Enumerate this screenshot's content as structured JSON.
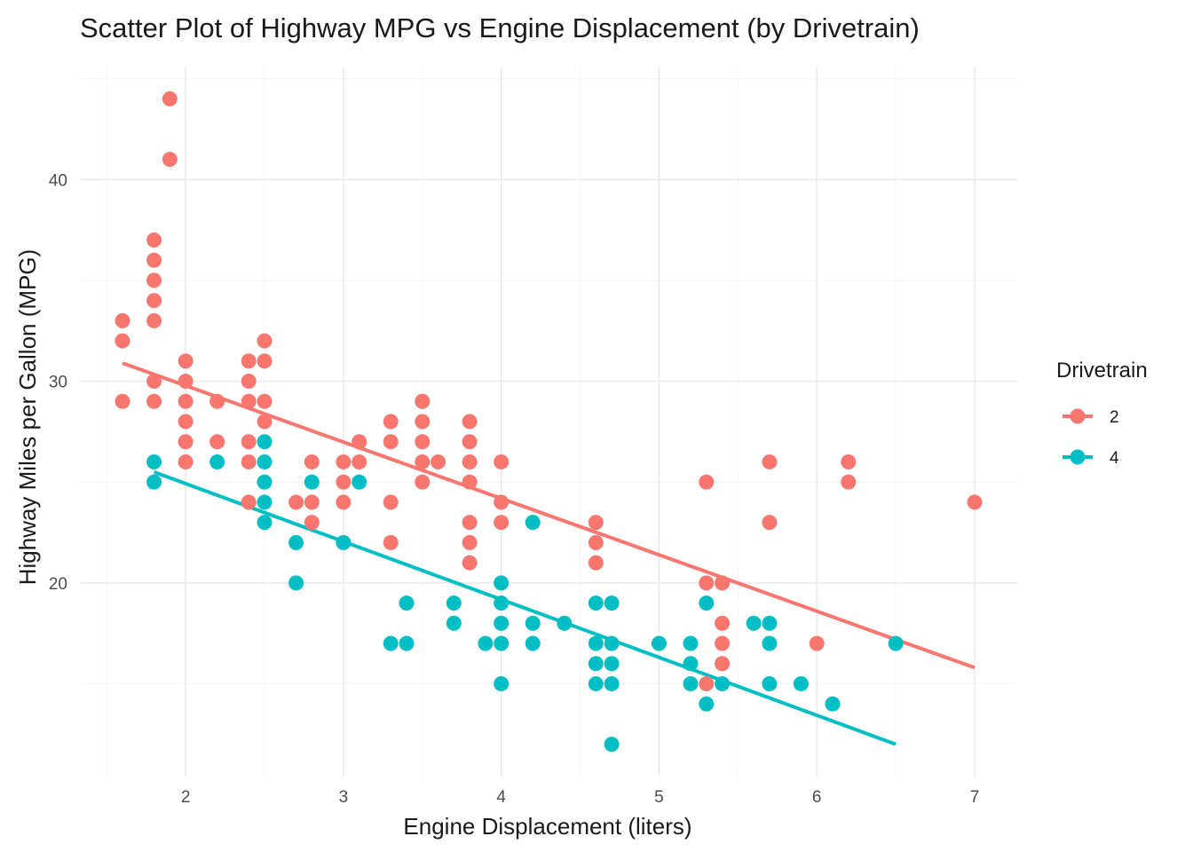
{
  "chart_data": {
    "type": "scatter",
    "title": "Scatter Plot of Highway MPG vs Engine Displacement (by Drivetrain)",
    "xlabel": "Engine Displacement (liters)",
    "ylabel": "Highway Miles per Gallon (MPG)",
    "xlim": [
      1.33,
      7.27
    ],
    "ylim": [
      10.4,
      45.6
    ],
    "x_ticks": [
      2,
      3,
      4,
      5,
      6,
      7
    ],
    "x_tick_labels": [
      "2",
      "3",
      "4",
      "5",
      "6",
      "7"
    ],
    "y_ticks": [
      20,
      30,
      40
    ],
    "y_tick_labels": [
      "20",
      "30",
      "40"
    ],
    "grid": true,
    "legend": {
      "title": "Drivetrain",
      "placement": "right"
    },
    "series": [
      {
        "name": "2",
        "color": "#F8766D",
        "points": [
          [
            1.6,
            33
          ],
          [
            1.6,
            32
          ],
          [
            1.6,
            29
          ],
          [
            1.8,
            37
          ],
          [
            1.8,
            36
          ],
          [
            1.8,
            35
          ],
          [
            1.8,
            34
          ],
          [
            1.8,
            33
          ],
          [
            1.8,
            30
          ],
          [
            1.8,
            29
          ],
          [
            1.9,
            44
          ],
          [
            1.9,
            41
          ],
          [
            2.0,
            31
          ],
          [
            2.0,
            30
          ],
          [
            2.0,
            29
          ],
          [
            2.0,
            28
          ],
          [
            2.0,
            27
          ],
          [
            2.0,
            26
          ],
          [
            2.2,
            29
          ],
          [
            2.2,
            27
          ],
          [
            2.4,
            31
          ],
          [
            2.4,
            30
          ],
          [
            2.4,
            29
          ],
          [
            2.4,
            27
          ],
          [
            2.4,
            26
          ],
          [
            2.4,
            24
          ],
          [
            2.5,
            32
          ],
          [
            2.5,
            31
          ],
          [
            2.5,
            29
          ],
          [
            2.5,
            28
          ],
          [
            2.7,
            24
          ],
          [
            2.8,
            26
          ],
          [
            2.8,
            24
          ],
          [
            2.8,
            23
          ],
          [
            3.0,
            26
          ],
          [
            3.0,
            25
          ],
          [
            3.0,
            24
          ],
          [
            3.1,
            27
          ],
          [
            3.1,
            26
          ],
          [
            3.3,
            28
          ],
          [
            3.3,
            27
          ],
          [
            3.3,
            24
          ],
          [
            3.3,
            22
          ],
          [
            3.5,
            29
          ],
          [
            3.5,
            28
          ],
          [
            3.5,
            27
          ],
          [
            3.5,
            26
          ],
          [
            3.5,
            25
          ],
          [
            3.6,
            26
          ],
          [
            3.8,
            28
          ],
          [
            3.8,
            27
          ],
          [
            3.8,
            26
          ],
          [
            3.8,
            25
          ],
          [
            3.8,
            23
          ],
          [
            3.8,
            22
          ],
          [
            3.8,
            21
          ],
          [
            4.0,
            26
          ],
          [
            4.0,
            24
          ],
          [
            4.0,
            23
          ],
          [
            4.6,
            23
          ],
          [
            4.6,
            22
          ],
          [
            4.6,
            21
          ],
          [
            5.3,
            25
          ],
          [
            5.3,
            20
          ],
          [
            5.3,
            15
          ],
          [
            5.4,
            20
          ],
          [
            5.4,
            18
          ],
          [
            5.4,
            17
          ],
          [
            5.4,
            16
          ],
          [
            5.7,
            26
          ],
          [
            5.7,
            23
          ],
          [
            6.0,
            17
          ],
          [
            6.2,
            26
          ],
          [
            6.2,
            25
          ],
          [
            7.0,
            24
          ]
        ],
        "trend": {
          "x": [
            1.6,
            7.0
          ],
          "y": [
            30.9,
            15.8
          ]
        }
      },
      {
        "name": "4",
        "color": "#00BFC4",
        "points": [
          [
            1.8,
            26
          ],
          [
            1.8,
            25
          ],
          [
            2.2,
            26
          ],
          [
            2.5,
            27
          ],
          [
            2.5,
            26
          ],
          [
            2.5,
            25
          ],
          [
            2.5,
            24
          ],
          [
            2.5,
            23
          ],
          [
            2.7,
            22
          ],
          [
            2.7,
            20
          ],
          [
            2.8,
            25
          ],
          [
            3.0,
            22
          ],
          [
            3.1,
            25
          ],
          [
            3.3,
            17
          ],
          [
            3.4,
            19
          ],
          [
            3.4,
            17
          ],
          [
            3.7,
            19
          ],
          [
            3.7,
            18
          ],
          [
            3.9,
            17
          ],
          [
            4.0,
            20
          ],
          [
            4.0,
            19
          ],
          [
            4.0,
            18
          ],
          [
            4.0,
            17
          ],
          [
            4.0,
            15
          ],
          [
            4.2,
            23
          ],
          [
            4.2,
            18
          ],
          [
            4.2,
            17
          ],
          [
            4.4,
            18
          ],
          [
            4.6,
            19
          ],
          [
            4.6,
            17
          ],
          [
            4.6,
            16
          ],
          [
            4.6,
            15
          ],
          [
            4.7,
            19
          ],
          [
            4.7,
            17
          ],
          [
            4.7,
            16
          ],
          [
            4.7,
            15
          ],
          [
            4.7,
            12
          ],
          [
            5.0,
            17
          ],
          [
            5.2,
            17
          ],
          [
            5.2,
            16
          ],
          [
            5.2,
            15
          ],
          [
            5.3,
            19
          ],
          [
            5.3,
            14
          ],
          [
            5.4,
            15
          ],
          [
            5.6,
            18
          ],
          [
            5.7,
            18
          ],
          [
            5.7,
            17
          ],
          [
            5.7,
            15
          ],
          [
            5.9,
            15
          ],
          [
            6.1,
            14
          ],
          [
            6.5,
            17
          ]
        ],
        "trend": {
          "x": [
            1.8,
            6.5
          ],
          "y": [
            25.5,
            12.0
          ]
        }
      }
    ]
  }
}
